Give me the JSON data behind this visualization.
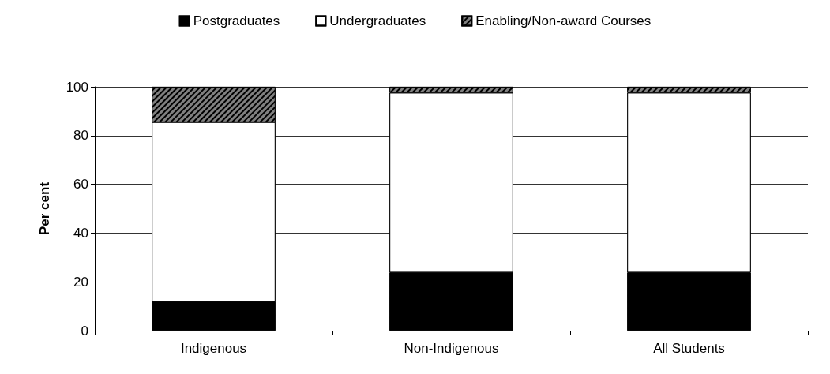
{
  "chart_data": {
    "type": "bar",
    "stacked": true,
    "ylabel": "Per cent",
    "categories": [
      "Indigenous",
      "Non-Indigenous",
      "All Students"
    ],
    "series": [
      {
        "name": "Postgraduates",
        "color": "#000000",
        "values": [
          12,
          23.8,
          23.8
        ]
      },
      {
        "name": "Undergraduates",
        "color": "#ffffff",
        "values": [
          73.5,
          73.8,
          73.8
        ]
      },
      {
        "name": "Enabling/Non-award Courses",
        "color": "#808080",
        "values": [
          14.5,
          2.4,
          2.4
        ]
      }
    ],
    "ylim": [
      0,
      100
    ],
    "yticks": [
      0,
      20,
      40,
      60,
      80,
      100
    ],
    "grid": "y",
    "legend": "top"
  }
}
